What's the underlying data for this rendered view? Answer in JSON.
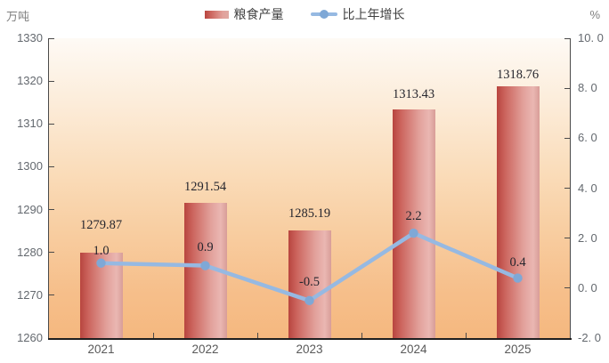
{
  "units": {
    "left": "万吨",
    "right": "%"
  },
  "legend": [
    {
      "label": "粮食产量",
      "type": "bar"
    },
    {
      "label": "比上年增长",
      "type": "line"
    }
  ],
  "chart_data": {
    "type": "bar+line combo",
    "categories": [
      "2021",
      "2022",
      "2023",
      "2024",
      "2025"
    ],
    "series": [
      {
        "name": "粮食产量",
        "type": "bar",
        "axis": "left",
        "unit": "万吨",
        "values": [
          1279.87,
          1291.54,
          1285.19,
          1313.43,
          1318.76
        ],
        "labels": [
          "1279.87",
          "1291.54",
          "1285.19",
          "1313.43",
          "1318.76"
        ]
      },
      {
        "name": "比上年增长",
        "type": "line",
        "axis": "right",
        "unit": "%",
        "values": [
          1.0,
          0.9,
          -0.5,
          2.2,
          0.4
        ],
        "labels": [
          "1.0",
          "0.9",
          "-0.5",
          "2.2",
          "0.4"
        ]
      }
    ],
    "left_axis": {
      "min": 1260,
      "max": 1330,
      "step": 10,
      "tick_labels": [
        "1330",
        "1320",
        "1310",
        "1300",
        "1290",
        "1280",
        "1270",
        "1260"
      ]
    },
    "right_axis": {
      "min": -2.0,
      "max": 10.0,
      "step": 2.0,
      "tick_labels": [
        "10. 0",
        "8. 0",
        "6. 0",
        "4. 0",
        "2. 0",
        "0. 0",
        "-2. 0"
      ]
    },
    "grid": false,
    "legend_position": "top-center",
    "bar_label_dy": [
      31,
      18,
      19,
      17,
      13
    ],
    "line_label_dy": [
      14,
      21,
      21,
      19,
      18
    ]
  },
  "colors": {
    "bar_gradient": [
      "#b8453f",
      "#cc655e",
      "#e2a19b",
      "#eab7b2",
      "#d89d98"
    ],
    "line": "#96b9e2",
    "marker": "#7fa8d6",
    "plot_bg_top": "#fefaf5",
    "plot_bg_bottom": "#f5b87f",
    "value_label_text": "#26262e",
    "axis_tick_text": "#64696f",
    "axis_line": "#4a4a4a",
    "x_axis_line": "#1f1f1f"
  }
}
